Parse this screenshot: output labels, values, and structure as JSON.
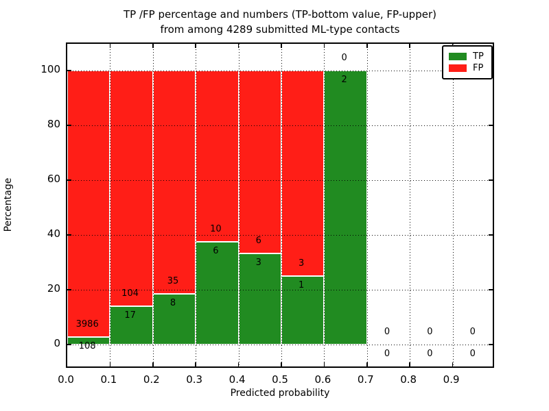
{
  "title": {
    "line1": "TP /FP percentage and numbers (TP-bottom value, FP-upper)",
    "line2": "from among 4289 submitted ML-type contacts"
  },
  "axes": {
    "xlabel": "Predicted probability",
    "ylabel": "Percentage",
    "x_tick_labels": [
      "0.0",
      "0.1",
      "0.2",
      "0.3",
      "0.4",
      "0.5",
      "0.6",
      "0.7",
      "0.8",
      "0.9"
    ],
    "x_tick_values": [
      0.0,
      0.1,
      0.2,
      0.3,
      0.4,
      0.5,
      0.6,
      0.7,
      0.8,
      0.9
    ],
    "y_tick_labels": [
      "0",
      "20",
      "40",
      "60",
      "80",
      "100"
    ],
    "y_tick_values": [
      0,
      20,
      40,
      60,
      80,
      100
    ],
    "grid": "dotted, drawn over bars"
  },
  "legend": {
    "position": "upper right",
    "items": [
      {
        "label": "TP",
        "color": "#218B21"
      },
      {
        "label": "FP",
        "color": "#FF1E17"
      }
    ]
  },
  "colors": {
    "tp_green": "#218B21",
    "fp_red": "#FF1E17",
    "bar_edge": "#FFFFFF",
    "axis": "#000000",
    "background": "#FFFFFF"
  },
  "chart_data": {
    "type": "bar",
    "stacked": true,
    "normalized_to": 100,
    "title": "TP /FP percentage and numbers (TP-bottom value, FP-upper) from among 4289 submitted ML-type contacts",
    "xlabel": "Predicted probability",
    "ylabel": "Percentage",
    "xlim": [
      0.0,
      1.0
    ],
    "ylim": [
      -10,
      110
    ],
    "bin_width": 0.1,
    "bin_starts": [
      0.0,
      0.1,
      0.2,
      0.3,
      0.4,
      0.5,
      0.6,
      0.7,
      0.8,
      0.9
    ],
    "series": [
      {
        "name": "TP",
        "color": "#218B21",
        "counts": [
          108,
          17,
          8,
          6,
          3,
          1,
          2,
          0,
          0,
          0
        ]
      },
      {
        "name": "FP",
        "color": "#FF1E17",
        "counts": [
          3986,
          104,
          35,
          10,
          6,
          3,
          0,
          0,
          0,
          0
        ]
      }
    ],
    "tp_percent_of_bin": [
      2.64,
      14.05,
      18.6,
      37.5,
      33.33,
      25.0,
      100.0,
      null,
      null,
      null
    ],
    "total_contacts": 4289,
    "note": "Each bar stacks TP (bottom, green) and FP (top, red) to 100%; raw counts are printed at the TP/FP boundary (TP below, FP above)."
  }
}
